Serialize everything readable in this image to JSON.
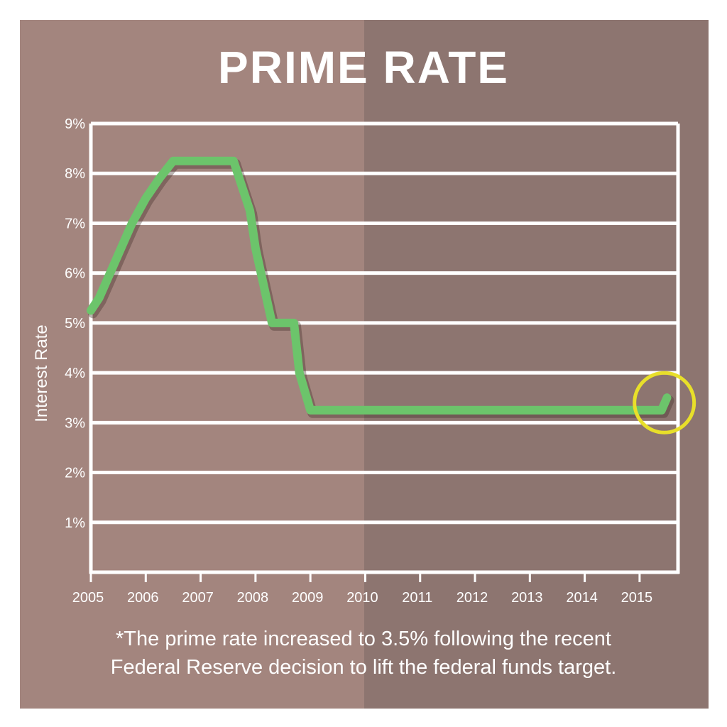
{
  "chart_data": {
    "type": "line",
    "title": "PRIME RATE",
    "xlabel": "",
    "ylabel": "Interest Rate",
    "x_ticks": [
      "2005",
      "2006",
      "2007",
      "2008",
      "2009",
      "2010",
      "2011",
      "2012",
      "2013",
      "2014",
      "2015"
    ],
    "y_ticks": [
      "1%",
      "2%",
      "3%",
      "4%",
      "5%",
      "6%",
      "7%",
      "8%",
      "9%"
    ],
    "xlim": [
      2005,
      2015.7
    ],
    "ylim": [
      0,
      9
    ],
    "grid": true,
    "series": [
      {
        "color": "#6cc46b",
        "points": [
          [
            2005.0,
            5.25
          ],
          [
            2005.15,
            5.5
          ],
          [
            2005.35,
            6.0
          ],
          [
            2005.55,
            6.5
          ],
          [
            2005.75,
            7.0
          ],
          [
            2006.0,
            7.5
          ],
          [
            2006.25,
            7.9
          ],
          [
            2006.5,
            8.25
          ],
          [
            2007.0,
            8.25
          ],
          [
            2007.6,
            8.25
          ],
          [
            2007.75,
            7.75
          ],
          [
            2007.9,
            7.25
          ],
          [
            2008.0,
            6.5
          ],
          [
            2008.1,
            6.0
          ],
          [
            2008.3,
            5.0
          ],
          [
            2008.7,
            5.0
          ],
          [
            2008.8,
            4.0
          ],
          [
            2009.0,
            3.25
          ],
          [
            2015.4,
            3.25
          ],
          [
            2015.5,
            3.5
          ]
        ]
      }
    ],
    "annotations": [
      {
        "type": "circle",
        "x": 2015.45,
        "y": 3.4,
        "color": "#e8df2a"
      }
    ]
  },
  "footnote": {
    "line1": "*The prime rate increased to 3.5% following the recent",
    "line2": "Federal Reserve decision to lift the federal funds target."
  },
  "colors": {
    "panel_left": "#a3857e",
    "panel_right": "#8d7570",
    "line": "#6cc46b",
    "highlight": "#e8df2a",
    "grid": "#ffffff"
  }
}
